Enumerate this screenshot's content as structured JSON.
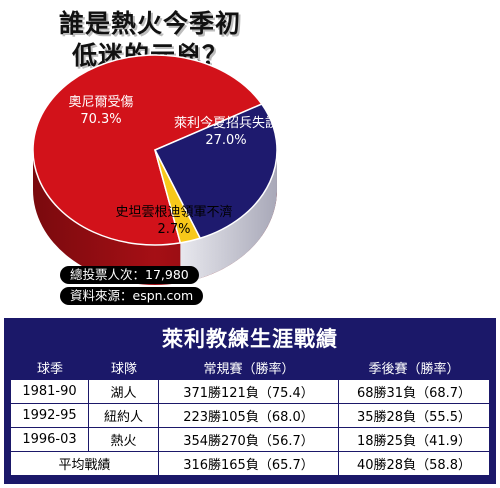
{
  "title": {
    "line1": "誰是熱火今季初",
    "line2": "低迷的元兇？"
  },
  "chart_data": {
    "type": "pie",
    "slices": [
      {
        "label": "奧尼爾受傷",
        "percent_text": "70.3%",
        "value": 70.3,
        "color": "#d2121a"
      },
      {
        "label": "萊利今夏招兵失誤",
        "percent_text": "27.0%",
        "value": 27.0,
        "color": "#1e1a6e"
      },
      {
        "label": "史坦雲根迪領軍不濟",
        "percent_text": "2.7%",
        "value": 2.7,
        "color": "#f7c81a"
      }
    ]
  },
  "poll": {
    "total_votes": "總投票人次：17,980",
    "source": "資料來源：espn.com"
  },
  "table": {
    "title": "萊利教練生涯戰績",
    "headers": [
      "球季",
      "球隊",
      "常規賽（勝率）",
      "季後賽（勝率）"
    ],
    "rows": [
      [
        "1981-90",
        "湖人",
        "371勝121負（75.4）",
        "68勝31負（68.7）"
      ],
      [
        "1992-95",
        "紐約人",
        "223勝105負（68.0）",
        "35勝28負（55.5）"
      ],
      [
        "1996-03",
        "熱火",
        "354勝270負（56.7）",
        "18勝25負（41.9）"
      ]
    ],
    "average": {
      "label": "平均戰績",
      "regular": "316勝165負（65.7）",
      "playoff": "40勝28負（58.8）"
    }
  }
}
